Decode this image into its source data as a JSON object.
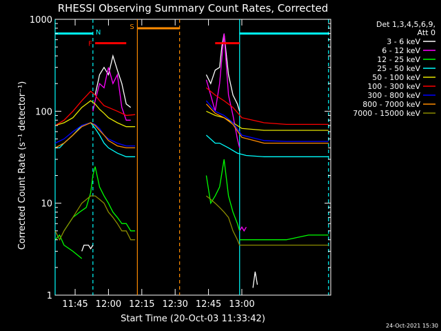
{
  "chart_data": {
    "type": "line",
    "title": "RHESSI Observing Summary Count Rates, Corrected",
    "xlabel": "Start Time (20-Oct-03 11:33:42)",
    "ylabel": "Corrected Count Rate (s⁻¹ detector⁻¹)",
    "yscale": "log",
    "ylim": [
      1,
      1000
    ],
    "xlim_minutes_after_1130": [
      6,
      130
    ],
    "x_ticks": [
      {
        "label": "11:45",
        "value": 15
      },
      {
        "label": "12:00",
        "value": 30
      },
      {
        "label": "12:15",
        "value": 45
      },
      {
        "label": "12:30",
        "value": 60
      },
      {
        "label": "12:45",
        "value": 75
      },
      {
        "label": "13:00",
        "value": 90
      }
    ],
    "y_ticks": [
      {
        "label": "1",
        "value": 1
      },
      {
        "label": "10",
        "value": 10
      },
      {
        "label": "100",
        "value": 100
      },
      {
        "label": "1000",
        "value": 1000
      }
    ],
    "legend": {
      "header": [
        "Det 1,3,4,5,6,9,",
        "Att 0"
      ],
      "entries": [
        {
          "label": "3 - 6 keV",
          "color": "#ffffff"
        },
        {
          "label": "6 - 12 keV",
          "color": "#ff00ff"
        },
        {
          "label": "12 - 25 keV",
          "color": "#00ff00"
        },
        {
          "label": "25 - 50 keV",
          "color": "#00ffff"
        },
        {
          "label": "50 - 100 keV",
          "color": "#e6e600"
        },
        {
          "label": "100 - 300 keV",
          "color": "#ff0000"
        },
        {
          "label": "300 - 800 keV",
          "color": "#0000ff"
        },
        {
          "label": "800 - 7000 keV",
          "color": "#ff8c00"
        },
        {
          "label": "7000 - 15000 keV",
          "color": "#8c8c00"
        }
      ]
    },
    "annotations": [
      {
        "label": "N",
        "color": "#00ffff",
        "x": 23,
        "kind": "night-end"
      },
      {
        "label": "F",
        "color": "#ff0000",
        "x_range": [
          24,
          38
        ],
        "y": 550,
        "kind": "flare"
      },
      {
        "label": "S",
        "color": "#ff8c00",
        "x_range": [
          43,
          62
        ],
        "kind": "saa"
      },
      {
        "label": "",
        "color": "#ff0000",
        "x_range": [
          78,
          89
        ],
        "y": 550,
        "kind": "flare"
      },
      {
        "label": "",
        "color": "#00ffff",
        "x_range": [
          6,
          23
        ],
        "y": 700,
        "kind": "night"
      },
      {
        "label": "",
        "color": "#00ffff",
        "x_range": [
          89,
          129
        ],
        "y": 700,
        "kind": "night"
      }
    ],
    "vertical_lines": [
      {
        "x": 6,
        "color": "#00ffff",
        "style": "solid"
      },
      {
        "x": 23,
        "color": "#00ffff",
        "style": "dashed"
      },
      {
        "x": 43,
        "color": "#ff8c00",
        "style": "solid"
      },
      {
        "x": 62,
        "color": "#ff8c00",
        "style": "dashed"
      },
      {
        "x": 89,
        "color": "#00ffff",
        "style": "solid"
      },
      {
        "x": 129,
        "color": "#00ffff",
        "style": "dashed"
      }
    ],
    "series": [
      {
        "name": "3 - 6 keV",
        "color": "#ffffff",
        "segments": [
          [
            [
              24,
              150
            ],
            [
              26,
              250
            ],
            [
              28,
              300
            ],
            [
              30,
              250
            ],
            [
              32,
              400
            ],
            [
              34,
              280
            ],
            [
              36,
              200
            ],
            [
              38,
              120
            ],
            [
              40,
              110
            ]
          ],
          [
            [
              18,
              3
            ],
            [
              19,
              3.5
            ],
            [
              21,
              3.5
            ],
            [
              22,
              3.2
            ],
            [
              23,
              3.5
            ]
          ],
          [
            [
              74,
              250
            ],
            [
              76,
              200
            ],
            [
              78,
              280
            ],
            [
              80,
              300
            ],
            [
              81,
              500
            ],
            [
              82,
              700
            ],
            [
              84,
              250
            ],
            [
              86,
              150
            ],
            [
              88,
              120
            ],
            [
              89,
              100
            ]
          ],
          [
            [
              95,
              1.2
            ],
            [
              96,
              1.8
            ],
            [
              97,
              1.3
            ]
          ]
        ]
      },
      {
        "name": "6 - 12 keV",
        "color": "#ff00ff",
        "segments": [
          [
            [
              23,
              100
            ],
            [
              24,
              130
            ],
            [
              26,
              200
            ],
            [
              28,
              180
            ],
            [
              30,
              300
            ],
            [
              32,
              200
            ],
            [
              34,
              250
            ],
            [
              36,
              110
            ],
            [
              38,
              80
            ],
            [
              40,
              80
            ]
          ],
          [
            [
              74,
              220
            ],
            [
              76,
              150
            ],
            [
              78,
              100
            ],
            [
              80,
              200
            ],
            [
              82,
              700
            ],
            [
              84,
              150
            ],
            [
              86,
              90
            ],
            [
              88,
              50
            ],
            [
              89,
              40
            ]
          ],
          [
            [
              89,
              5
            ],
            [
              90,
              5.5
            ],
            [
              91,
              5
            ],
            [
              92,
              5.5
            ]
          ]
        ]
      },
      {
        "name": "12 - 25 keV",
        "color": "#00ff00",
        "segments": [
          [
            [
              6,
              4
            ],
            [
              8,
              4.5
            ],
            [
              10,
              3.5
            ],
            [
              14,
              3
            ],
            [
              18,
              2.5
            ]
          ],
          [
            [
              10,
              5
            ],
            [
              14,
              7
            ],
            [
              17,
              8
            ],
            [
              20,
              9
            ],
            [
              22,
              13
            ],
            [
              23,
              20
            ],
            [
              24,
              25
            ],
            [
              26,
              15
            ],
            [
              28,
              12
            ],
            [
              30,
              10
            ],
            [
              32,
              8
            ],
            [
              34,
              7
            ],
            [
              36,
              6
            ],
            [
              38,
              6
            ],
            [
              40,
              5
            ],
            [
              42,
              5
            ]
          ],
          [
            [
              74,
              20
            ],
            [
              76,
              10
            ],
            [
              78,
              12
            ],
            [
              80,
              15
            ],
            [
              82,
              30
            ],
            [
              84,
              12
            ],
            [
              86,
              8
            ],
            [
              88,
              6
            ],
            [
              89,
              5
            ]
          ],
          [
            [
              89,
              4
            ],
            [
              100,
              4
            ],
            [
              110,
              4
            ],
            [
              120,
              4.5
            ],
            [
              129,
              4.5
            ]
          ]
        ]
      },
      {
        "name": "25 - 50 keV",
        "color": "#00ffff",
        "segments": [
          [
            [
              6,
              40
            ],
            [
              8,
              40
            ],
            [
              10,
              45
            ],
            [
              14,
              55
            ],
            [
              18,
              70
            ],
            [
              22,
              75
            ],
            [
              24,
              65
            ],
            [
              26,
              55
            ],
            [
              28,
              45
            ],
            [
              30,
              40
            ],
            [
              34,
              35
            ],
            [
              38,
              32
            ],
            [
              42,
              32
            ]
          ],
          [
            [
              74,
              55
            ],
            [
              78,
              45
            ],
            [
              80,
              45
            ],
            [
              84,
              40
            ],
            [
              88,
              35
            ],
            [
              92,
              33
            ],
            [
              100,
              32
            ],
            [
              110,
              32
            ],
            [
              120,
              32
            ],
            [
              129,
              32
            ]
          ]
        ]
      },
      {
        "name": "50 - 100 keV",
        "color": "#e6e600",
        "segments": [
          [
            [
              6,
              70
            ],
            [
              10,
              75
            ],
            [
              14,
              85
            ],
            [
              18,
              110
            ],
            [
              22,
              130
            ],
            [
              24,
              120
            ],
            [
              26,
              105
            ],
            [
              28,
              95
            ],
            [
              30,
              85
            ],
            [
              34,
              75
            ],
            [
              38,
              68
            ],
            [
              42,
              68
            ]
          ],
          [
            [
              74,
              100
            ],
            [
              78,
              90
            ],
            [
              82,
              85
            ],
            [
              86,
              75
            ],
            [
              90,
              65
            ],
            [
              100,
              62
            ],
            [
              110,
              62
            ],
            [
              120,
              62
            ],
            [
              129,
              62
            ]
          ]
        ]
      },
      {
        "name": "100 - 300 keV",
        "color": "#ff0000",
        "segments": [
          [
            [
              6,
              70
            ],
            [
              10,
              80
            ],
            [
              14,
              100
            ],
            [
              18,
              130
            ],
            [
              22,
              165
            ],
            [
              24,
              150
            ],
            [
              26,
              130
            ],
            [
              28,
              115
            ],
            [
              30,
              110
            ],
            [
              34,
              100
            ],
            [
              38,
              90
            ],
            [
              42,
              92
            ]
          ],
          [
            [
              74,
              180
            ],
            [
              78,
              150
            ],
            [
              82,
              130
            ],
            [
              86,
              110
            ],
            [
              90,
              85
            ],
            [
              100,
              75
            ],
            [
              110,
              72
            ],
            [
              120,
              72
            ],
            [
              129,
              72
            ]
          ]
        ]
      },
      {
        "name": "300 - 800 keV",
        "color": "#0000ff",
        "segments": [
          [
            [
              6,
              45
            ],
            [
              10,
              50
            ],
            [
              14,
              60
            ],
            [
              18,
              70
            ],
            [
              22,
              75
            ],
            [
              24,
              72
            ],
            [
              26,
              65
            ],
            [
              28,
              55
            ],
            [
              30,
              50
            ],
            [
              34,
              45
            ],
            [
              38,
              42
            ],
            [
              42,
              42
            ]
          ],
          [
            [
              74,
              130
            ],
            [
              78,
              100
            ],
            [
              82,
              90
            ],
            [
              86,
              75
            ],
            [
              90,
              55
            ],
            [
              100,
              48
            ],
            [
              110,
              47
            ],
            [
              120,
              47
            ],
            [
              129,
              47
            ]
          ]
        ]
      },
      {
        "name": "800 - 7000 keV",
        "color": "#ff8c00",
        "segments": [
          [
            [
              6,
              40
            ],
            [
              10,
              45
            ],
            [
              14,
              55
            ],
            [
              18,
              68
            ],
            [
              22,
              75
            ],
            [
              24,
              70
            ],
            [
              26,
              62
            ],
            [
              28,
              55
            ],
            [
              30,
              48
            ],
            [
              34,
              42
            ],
            [
              38,
              40
            ],
            [
              42,
              40
            ]
          ],
          [
            [
              74,
              120
            ],
            [
              78,
              95
            ],
            [
              82,
              85
            ],
            [
              86,
              72
            ],
            [
              90,
              52
            ],
            [
              100,
              45
            ],
            [
              110,
              45
            ],
            [
              120,
              45
            ],
            [
              129,
              45
            ]
          ]
        ]
      },
      {
        "name": "7000 - 15000 keV",
        "color": "#8c8c00",
        "segments": [
          [
            [
              6,
              5
            ],
            [
              8,
              4
            ],
            [
              10,
              5
            ],
            [
              14,
              7
            ],
            [
              18,
              10
            ],
            [
              22,
              12
            ],
            [
              24,
              12
            ],
            [
              26,
              11
            ],
            [
              28,
              10
            ],
            [
              30,
              8
            ],
            [
              32,
              7
            ],
            [
              34,
              6
            ],
            [
              36,
              5
            ],
            [
              38,
              5
            ],
            [
              40,
              4
            ],
            [
              42,
              4
            ]
          ],
          [
            [
              74,
              12
            ],
            [
              76,
              11
            ],
            [
              78,
              10
            ],
            [
              80,
              9
            ],
            [
              82,
              8
            ],
            [
              84,
              7
            ],
            [
              86,
              5
            ],
            [
              88,
              4
            ],
            [
              89,
              3.5
            ],
            [
              95,
              3.5
            ],
            [
              100,
              3.5
            ],
            [
              110,
              3.5
            ],
            [
              120,
              3.5
            ],
            [
              129,
              3.5
            ]
          ]
        ]
      }
    ],
    "timestamp": "24-Oct-2021 15:30"
  }
}
